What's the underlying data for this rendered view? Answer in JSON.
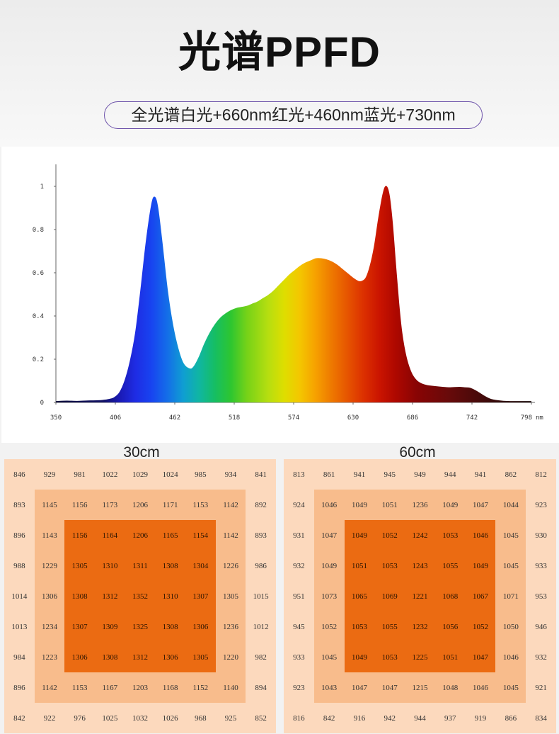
{
  "header": {
    "title": "光谱PPFD",
    "subtitle": "全光谱白光+660nm红光+460nm蓝光+730nm"
  },
  "colors": {
    "pill_border": "#6d52aa"
  },
  "chart_data": [
    {
      "type": "area",
      "x_unit": "nm",
      "xlim": [
        350,
        798
      ],
      "ylim": [
        0,
        1
      ],
      "xticks": [
        "350",
        "406",
        "462",
        "518",
        "574",
        "630",
        "686",
        "742",
        "798"
      ],
      "yticks": [
        "0",
        "0.2",
        "0.4",
        "0.6",
        "0.8",
        "1"
      ],
      "grid": false,
      "fill_gradient": [
        {
          "nm": 350,
          "color": "#0b0b3a"
        },
        {
          "nm": 395,
          "color": "#121266"
        },
        {
          "nm": 410,
          "color": "#1a1ab4"
        },
        {
          "nm": 425,
          "color": "#1e2ce4"
        },
        {
          "nm": 440,
          "color": "#1844f0"
        },
        {
          "nm": 455,
          "color": "#146ee8"
        },
        {
          "nm": 470,
          "color": "#0f9ed2"
        },
        {
          "nm": 485,
          "color": "#10b6a2"
        },
        {
          "nm": 500,
          "color": "#16be62"
        },
        {
          "nm": 515,
          "color": "#2ec630"
        },
        {
          "nm": 530,
          "color": "#76d218"
        },
        {
          "nm": 550,
          "color": "#b6de10"
        },
        {
          "nm": 565,
          "color": "#dede00"
        },
        {
          "nm": 580,
          "color": "#f4c600"
        },
        {
          "nm": 595,
          "color": "#f6a000"
        },
        {
          "nm": 610,
          "color": "#ee7800"
        },
        {
          "nm": 625,
          "color": "#e65400"
        },
        {
          "nm": 640,
          "color": "#dc3000"
        },
        {
          "nm": 655,
          "color": "#ca1400"
        },
        {
          "nm": 670,
          "color": "#ae0800"
        },
        {
          "nm": 690,
          "color": "#880404"
        },
        {
          "nm": 720,
          "color": "#680a0a"
        },
        {
          "nm": 760,
          "color": "#3a0a0a"
        },
        {
          "nm": 798,
          "color": "#1a0a0a"
        }
      ],
      "x": [
        350,
        360,
        370,
        380,
        390,
        395,
        400,
        405,
        410,
        415,
        420,
        425,
        430,
        435,
        440,
        443,
        446,
        450,
        455,
        460,
        465,
        470,
        476,
        480,
        485,
        490,
        495,
        500,
        505,
        510,
        515,
        520,
        525,
        530,
        535,
        540,
        545,
        550,
        555,
        560,
        565,
        570,
        575,
        580,
        585,
        590,
        595,
        600,
        605,
        610,
        615,
        620,
        625,
        630,
        635,
        638,
        642,
        646,
        650,
        654,
        658,
        661,
        664,
        667,
        670,
        673,
        676,
        680,
        685,
        690,
        695,
        700,
        710,
        720,
        730,
        735,
        740,
        745,
        750,
        755,
        760,
        770,
        780,
        790,
        798
      ],
      "values": [
        0.004,
        0.006,
        0.005,
        0.007,
        0.008,
        0.01,
        0.014,
        0.022,
        0.045,
        0.1,
        0.19,
        0.32,
        0.52,
        0.74,
        0.91,
        0.95,
        0.9,
        0.74,
        0.52,
        0.36,
        0.25,
        0.18,
        0.155,
        0.165,
        0.21,
        0.27,
        0.32,
        0.36,
        0.39,
        0.41,
        0.425,
        0.435,
        0.44,
        0.445,
        0.455,
        0.465,
        0.48,
        0.495,
        0.515,
        0.54,
        0.565,
        0.59,
        0.61,
        0.63,
        0.645,
        0.655,
        0.665,
        0.665,
        0.66,
        0.65,
        0.635,
        0.615,
        0.595,
        0.575,
        0.56,
        0.56,
        0.575,
        0.63,
        0.72,
        0.85,
        0.96,
        1.0,
        0.96,
        0.83,
        0.64,
        0.46,
        0.32,
        0.21,
        0.135,
        0.1,
        0.085,
        0.078,
        0.072,
        0.068,
        0.07,
        0.068,
        0.066,
        0.055,
        0.04,
        0.025,
        0.014,
        0.006,
        0.004,
        0.004,
        0.004
      ]
    },
    {
      "type": "heatmap",
      "title": "30cm",
      "zone_colors": {
        "outer": "#fcd9bd",
        "middle": "#f8bc8c",
        "inner": "#eb6b12"
      },
      "values": [
        [
          846,
          929,
          981,
          1022,
          1029,
          1024,
          985,
          934,
          841
        ],
        [
          893,
          1145,
          1156,
          1173,
          1206,
          1171,
          1153,
          1142,
          892
        ],
        [
          896,
          1143,
          1156,
          1164,
          1206,
          1165,
          1154,
          1142,
          893
        ],
        [
          988,
          1229,
          1305,
          1310,
          1311,
          1308,
          1304,
          1226,
          986
        ],
        [
          1014,
          1306,
          1308,
          1312,
          1352,
          1310,
          1307,
          1305,
          1015
        ],
        [
          1013,
          1234,
          1307,
          1309,
          1325,
          1308,
          1306,
          1236,
          1012
        ],
        [
          984,
          1223,
          1306,
          1308,
          1312,
          1306,
          1305,
          1220,
          982
        ],
        [
          896,
          1142,
          1153,
          1167,
          1203,
          1168,
          1152,
          1140,
          894
        ],
        [
          842,
          922,
          976,
          1025,
          1032,
          1026,
          968,
          925,
          852
        ]
      ]
    },
    {
      "type": "heatmap",
      "title": "60cm",
      "zone_colors": {
        "outer": "#fcd9bd",
        "middle": "#f8bc8c",
        "inner": "#eb6b12"
      },
      "values": [
        [
          813,
          861,
          941,
          945,
          949,
          944,
          941,
          862,
          812
        ],
        [
          924,
          1046,
          1049,
          1051,
          1236,
          1049,
          1047,
          1044,
          923
        ],
        [
          931,
          1047,
          1049,
          1052,
          1242,
          1053,
          1046,
          1045,
          930
        ],
        [
          932,
          1049,
          1051,
          1053,
          1243,
          1055,
          1049,
          1045,
          933
        ],
        [
          951,
          1073,
          1065,
          1069,
          1221,
          1068,
          1067,
          1071,
          953
        ],
        [
          945,
          1052,
          1053,
          1055,
          1232,
          1056,
          1052,
          1050,
          946
        ],
        [
          933,
          1045,
          1049,
          1053,
          1225,
          1051,
          1047,
          1046,
          932
        ],
        [
          923,
          1043,
          1047,
          1047,
          1215,
          1048,
          1046,
          1045,
          921
        ],
        [
          816,
          842,
          916,
          942,
          944,
          937,
          919,
          866,
          834
        ]
      ]
    }
  ]
}
